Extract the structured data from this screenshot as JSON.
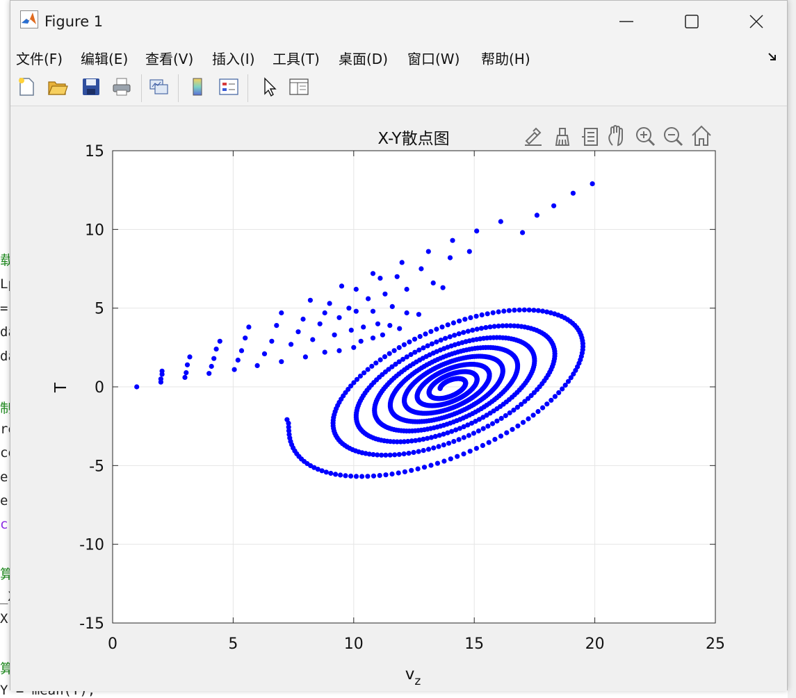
{
  "window": {
    "title": "Figure 1"
  },
  "menu": [
    "文件(F)",
    "编辑(E)",
    "查看(V)",
    "插入(I)",
    "工具(T)",
    "桌面(D)",
    "窗口(W)",
    "帮助(H)"
  ],
  "toolbar": [
    "new-figure",
    "open-file",
    "save",
    "print",
    "link-plot",
    "insert-colorbar",
    "insert-legend",
    "edit-plot-arrow",
    "property-inspector"
  ],
  "axes_toolbar": [
    "brush-export",
    "data-brush",
    "data-tips",
    "pan",
    "zoom-in",
    "zoom-out",
    "restore-view"
  ],
  "background_editor_lines": [
    "载",
    "Lp",
    " =",
    "da",
    "da",
    "",
    "制",
    "re",
    "ce",
    "e]",
    "e(",
    " c",
    "",
    "算",
    "_X",
    "X",
    "",
    "算",
    "Y = mean(T);"
  ],
  "colors": {
    "points": "#0000ff",
    "axes_bg": "#ffffff",
    "figure_bg": "#f0f0f0",
    "grid": "#e5e5e5"
  },
  "chart_data": {
    "type": "scatter",
    "title": "X-Y散点图",
    "xlabel": "v_z",
    "ylabel": "T",
    "xlim": [
      0,
      25
    ],
    "ylim": [
      -15,
      15
    ],
    "xticks": [
      0,
      5,
      10,
      15,
      20,
      25
    ],
    "yticks": [
      -15,
      -10,
      -5,
      0,
      5,
      10,
      15
    ],
    "grid": true,
    "series": [
      {
        "marker": "filled-circle",
        "color": "#0000ff",
        "spiral": {
          "center": [
            14.0,
            0.0
          ],
          "semi_axes_start": [
            8.4,
            4.5
          ],
          "semi_axes_end": [
            0.5,
            0.3
          ],
          "rotation_deg": 41,
          "turns": 8,
          "count": 1100
        },
        "transient_points": [
          [
            1.0,
            0.0
          ],
          [
            2.0,
            0.3
          ],
          [
            2.0,
            0.5
          ],
          [
            2.05,
            0.8
          ],
          [
            2.05,
            1.0
          ],
          [
            3.0,
            0.6
          ],
          [
            3.05,
            0.9
          ],
          [
            3.1,
            1.4
          ],
          [
            3.2,
            1.9
          ],
          [
            4.0,
            0.85
          ],
          [
            4.1,
            1.3
          ],
          [
            4.2,
            1.8
          ],
          [
            4.3,
            2.4
          ],
          [
            4.45,
            2.9
          ],
          [
            5.05,
            1.1
          ],
          [
            5.2,
            1.7
          ],
          [
            5.35,
            2.3
          ],
          [
            5.5,
            3.1
          ],
          [
            5.65,
            3.8
          ],
          [
            6.0,
            1.35
          ],
          [
            6.3,
            2.1
          ],
          [
            6.6,
            2.9
          ],
          [
            6.8,
            3.9
          ],
          [
            7.0,
            4.7
          ],
          [
            7.0,
            1.6
          ],
          [
            7.4,
            2.7
          ],
          [
            7.7,
            3.5
          ],
          [
            7.9,
            4.3
          ],
          [
            8.2,
            5.5
          ],
          [
            8.0,
            1.9
          ],
          [
            8.3,
            3.0
          ],
          [
            8.6,
            4.0
          ],
          [
            8.8,
            4.7
          ],
          [
            9.0,
            5.3
          ],
          [
            9.5,
            6.4
          ],
          [
            8.8,
            2.2
          ],
          [
            9.2,
            3.3
          ],
          [
            9.4,
            4.4
          ],
          [
            9.8,
            5.0
          ],
          [
            10.1,
            6.2
          ],
          [
            10.8,
            7.2
          ],
          [
            9.4,
            2.3
          ],
          [
            9.9,
            3.6
          ],
          [
            10.1,
            4.8
          ],
          [
            10.6,
            5.6
          ],
          [
            11.1,
            6.9
          ],
          [
            12.0,
            7.9
          ],
          [
            10.0,
            2.5
          ],
          [
            10.4,
            3.8
          ],
          [
            10.8,
            4.8
          ],
          [
            11.3,
            5.9
          ],
          [
            11.8,
            7.0
          ],
          [
            13.1,
            8.6
          ],
          [
            10.3,
            2.9
          ],
          [
            11.0,
            4.0
          ],
          [
            11.6,
            5.1
          ],
          [
            12.2,
            6.2
          ],
          [
            12.8,
            7.5
          ],
          [
            14.1,
            9.3
          ],
          [
            10.8,
            3.1
          ],
          [
            11.5,
            3.9
          ],
          [
            12.2,
            4.7
          ],
          [
            13.3,
            6.6
          ],
          [
            14.0,
            8.2
          ],
          [
            15.1,
            9.9
          ],
          [
            11.2,
            3.3
          ],
          [
            11.9,
            3.7
          ],
          [
            12.7,
            4.6
          ],
          [
            13.7,
            6.3
          ],
          [
            14.8,
            8.6
          ],
          [
            16.1,
            10.5
          ],
          [
            17.0,
            9.8
          ],
          [
            17.6,
            10.9
          ],
          [
            18.3,
            11.5
          ],
          [
            19.1,
            12.3
          ],
          [
            19.9,
            12.9
          ]
        ]
      }
    ]
  }
}
